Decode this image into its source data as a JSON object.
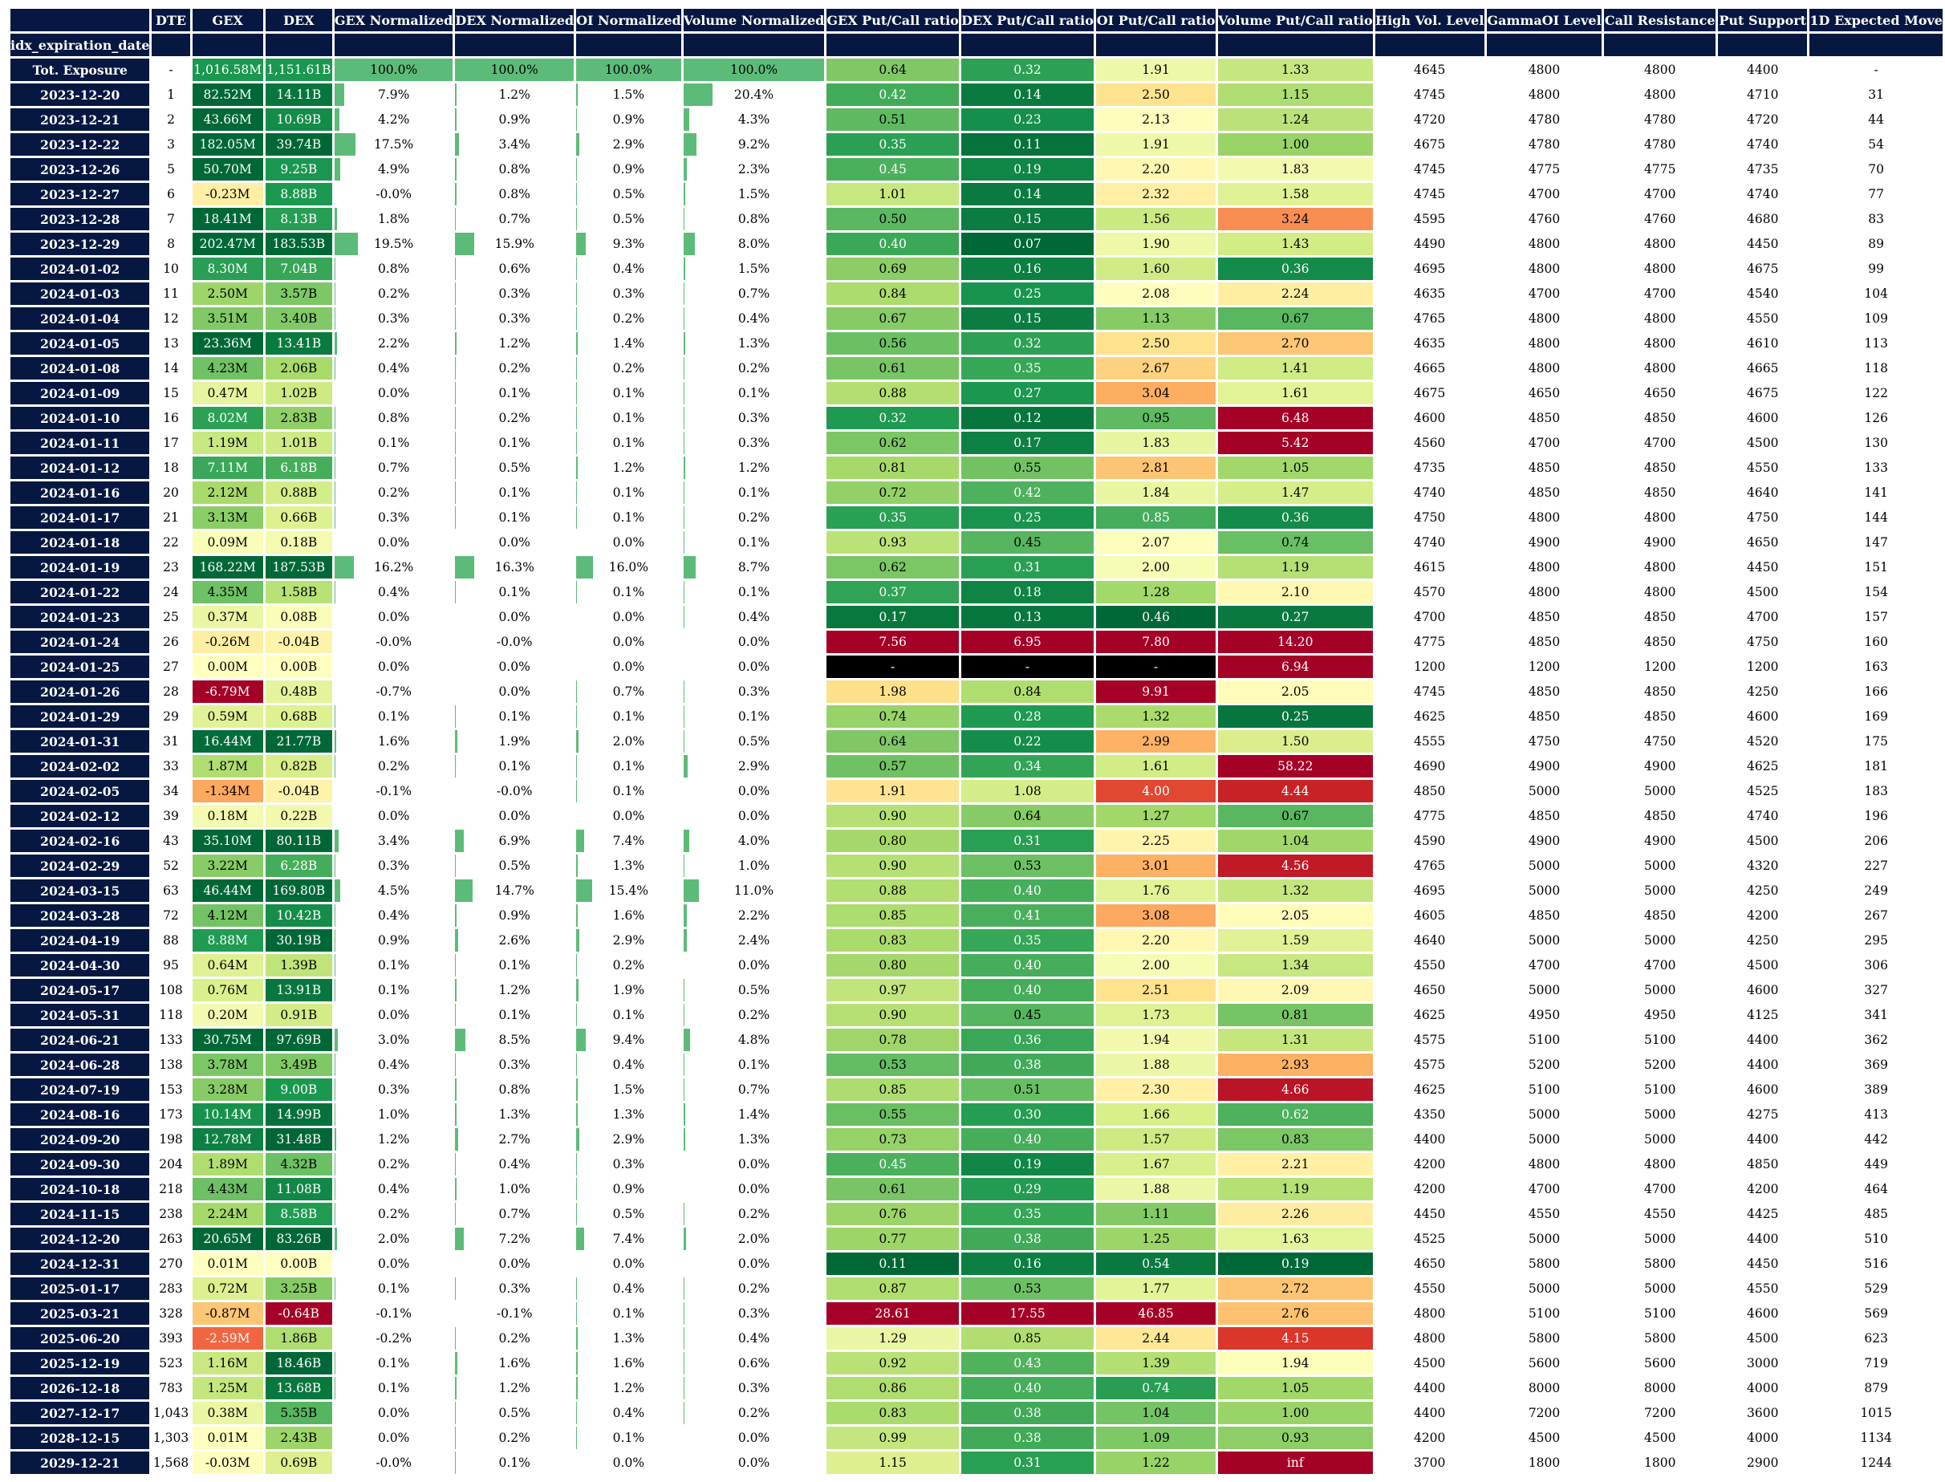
{
  "chart_data": {
    "type": "table",
    "index_name": "idx_expiration_date",
    "columns": [
      "DTE",
      "GEX",
      "DEX",
      "GEX Normalized",
      "DEX Normalized",
      "OI Normalized",
      "Volume Normalized",
      "GEX Put/Call ratio",
      "DEX Put/Call ratio",
      "OI Put/Call ratio",
      "Volume Put/Call ratio",
      "High Vol. Level",
      "GammaOI Level",
      "Call Resistance",
      "Put Support",
      "1D Expected Move"
    ],
    "rows": [
      [
        "Tot. Exposure",
        "-",
        "1,016.58M",
        "1,151.61B",
        "100.0%",
        "100.0%",
        "100.0%",
        "100.0%",
        "0.64",
        "0.32",
        "1.91",
        "1.33",
        "4645",
        "4800",
        "4800",
        "4400",
        "-"
      ],
      [
        "2023-12-20",
        "1",
        "82.52M",
        "14.11B",
        "7.9%",
        "1.2%",
        "1.5%",
        "20.4%",
        "0.42",
        "0.14",
        "2.50",
        "1.15",
        "4745",
        "4800",
        "4800",
        "4710",
        "31"
      ],
      [
        "2023-12-21",
        "2",
        "43.66M",
        "10.69B",
        "4.2%",
        "0.9%",
        "0.9%",
        "4.3%",
        "0.51",
        "0.23",
        "2.13",
        "1.24",
        "4720",
        "4780",
        "4780",
        "4720",
        "44"
      ],
      [
        "2023-12-22",
        "3",
        "182.05M",
        "39.74B",
        "17.5%",
        "3.4%",
        "2.9%",
        "9.2%",
        "0.35",
        "0.11",
        "1.91",
        "1.00",
        "4675",
        "4780",
        "4780",
        "4740",
        "54"
      ],
      [
        "2023-12-26",
        "5",
        "50.70M",
        "9.25B",
        "4.9%",
        "0.8%",
        "0.9%",
        "2.3%",
        "0.45",
        "0.19",
        "2.20",
        "1.83",
        "4745",
        "4775",
        "4775",
        "4735",
        "70"
      ],
      [
        "2023-12-27",
        "6",
        "-0.23M",
        "8.88B",
        "-0.0%",
        "0.8%",
        "0.5%",
        "1.5%",
        "1.01",
        "0.14",
        "2.32",
        "1.58",
        "4745",
        "4700",
        "4700",
        "4740",
        "77"
      ],
      [
        "2023-12-28",
        "7",
        "18.41M",
        "8.13B",
        "1.8%",
        "0.7%",
        "0.5%",
        "0.8%",
        "0.50",
        "0.15",
        "1.56",
        "3.24",
        "4595",
        "4760",
        "4760",
        "4680",
        "83"
      ],
      [
        "2023-12-29",
        "8",
        "202.47M",
        "183.53B",
        "19.5%",
        "15.9%",
        "9.3%",
        "8.0%",
        "0.40",
        "0.07",
        "1.90",
        "1.43",
        "4490",
        "4800",
        "4800",
        "4450",
        "89"
      ],
      [
        "2024-01-02",
        "10",
        "8.30M",
        "7.04B",
        "0.8%",
        "0.6%",
        "0.4%",
        "1.5%",
        "0.69",
        "0.16",
        "1.60",
        "0.36",
        "4695",
        "4800",
        "4800",
        "4675",
        "99"
      ],
      [
        "2024-01-03",
        "11",
        "2.50M",
        "3.57B",
        "0.2%",
        "0.3%",
        "0.3%",
        "0.7%",
        "0.84",
        "0.25",
        "2.08",
        "2.24",
        "4635",
        "4700",
        "4700",
        "4540",
        "104"
      ],
      [
        "2024-01-04",
        "12",
        "3.51M",
        "3.40B",
        "0.3%",
        "0.3%",
        "0.2%",
        "0.4%",
        "0.67",
        "0.15",
        "1.13",
        "0.67",
        "4765",
        "4800",
        "4800",
        "4550",
        "109"
      ],
      [
        "2024-01-05",
        "13",
        "23.36M",
        "13.41B",
        "2.2%",
        "1.2%",
        "1.4%",
        "1.3%",
        "0.56",
        "0.32",
        "2.50",
        "2.70",
        "4635",
        "4800",
        "4800",
        "4610",
        "113"
      ],
      [
        "2024-01-08",
        "14",
        "4.23M",
        "2.06B",
        "0.4%",
        "0.2%",
        "0.2%",
        "0.2%",
        "0.61",
        "0.35",
        "2.67",
        "1.41",
        "4665",
        "4800",
        "4800",
        "4665",
        "118"
      ],
      [
        "2024-01-09",
        "15",
        "0.47M",
        "1.02B",
        "0.0%",
        "0.1%",
        "0.1%",
        "0.1%",
        "0.88",
        "0.27",
        "3.04",
        "1.61",
        "4675",
        "4650",
        "4650",
        "4675",
        "122"
      ],
      [
        "2024-01-10",
        "16",
        "8.02M",
        "2.83B",
        "0.8%",
        "0.2%",
        "0.1%",
        "0.3%",
        "0.32",
        "0.12",
        "0.95",
        "6.48",
        "4600",
        "4850",
        "4850",
        "4600",
        "126"
      ],
      [
        "2024-01-11",
        "17",
        "1.19M",
        "1.01B",
        "0.1%",
        "0.1%",
        "0.1%",
        "0.3%",
        "0.62",
        "0.17",
        "1.83",
        "5.42",
        "4560",
        "4700",
        "4700",
        "4500",
        "130"
      ],
      [
        "2024-01-12",
        "18",
        "7.11M",
        "6.18B",
        "0.7%",
        "0.5%",
        "1.2%",
        "1.2%",
        "0.81",
        "0.55",
        "2.81",
        "1.05",
        "4735",
        "4850",
        "4850",
        "4550",
        "133"
      ],
      [
        "2024-01-16",
        "20",
        "2.12M",
        "0.88B",
        "0.2%",
        "0.1%",
        "0.1%",
        "0.1%",
        "0.72",
        "0.42",
        "1.84",
        "1.47",
        "4740",
        "4850",
        "4850",
        "4640",
        "141"
      ],
      [
        "2024-01-17",
        "21",
        "3.13M",
        "0.66B",
        "0.3%",
        "0.1%",
        "0.1%",
        "0.2%",
        "0.35",
        "0.25",
        "0.85",
        "0.36",
        "4750",
        "4800",
        "4800",
        "4750",
        "144"
      ],
      [
        "2024-01-18",
        "22",
        "0.09M",
        "0.18B",
        "0.0%",
        "0.0%",
        "0.0%",
        "0.1%",
        "0.93",
        "0.45",
        "2.07",
        "0.74",
        "4740",
        "4900",
        "4900",
        "4650",
        "147"
      ],
      [
        "2024-01-19",
        "23",
        "168.22M",
        "187.53B",
        "16.2%",
        "16.3%",
        "16.0%",
        "8.7%",
        "0.62",
        "0.31",
        "2.00",
        "1.19",
        "4615",
        "4800",
        "4800",
        "4450",
        "151"
      ],
      [
        "2024-01-22",
        "24",
        "4.35M",
        "1.58B",
        "0.4%",
        "0.1%",
        "0.1%",
        "0.1%",
        "0.37",
        "0.18",
        "1.28",
        "2.10",
        "4570",
        "4800",
        "4800",
        "4500",
        "154"
      ],
      [
        "2024-01-23",
        "25",
        "0.37M",
        "0.08B",
        "0.0%",
        "0.0%",
        "0.0%",
        "0.4%",
        "0.17",
        "0.13",
        "0.46",
        "0.27",
        "4700",
        "4850",
        "4850",
        "4700",
        "157"
      ],
      [
        "2024-01-24",
        "26",
        "-0.26M",
        "-0.04B",
        "-0.0%",
        "-0.0%",
        "0.0%",
        "0.0%",
        "7.56",
        "6.95",
        "7.80",
        "14.20",
        "4775",
        "4850",
        "4850",
        "4750",
        "160"
      ],
      [
        "2024-01-25",
        "27",
        "0.00M",
        "0.00B",
        "0.0%",
        "0.0%",
        "0.0%",
        "0.0%",
        "-",
        "-",
        "-",
        "6.94",
        "1200",
        "1200",
        "1200",
        "1200",
        "163"
      ],
      [
        "2024-01-26",
        "28",
        "-6.79M",
        "0.48B",
        "-0.7%",
        "0.0%",
        "0.7%",
        "0.3%",
        "1.98",
        "0.84",
        "9.91",
        "2.05",
        "4745",
        "4850",
        "4850",
        "4250",
        "166"
      ],
      [
        "2024-01-29",
        "29",
        "0.59M",
        "0.68B",
        "0.1%",
        "0.1%",
        "0.1%",
        "0.1%",
        "0.74",
        "0.28",
        "1.32",
        "0.25",
        "4625",
        "4850",
        "4850",
        "4600",
        "169"
      ],
      [
        "2024-01-31",
        "31",
        "16.44M",
        "21.77B",
        "1.6%",
        "1.9%",
        "2.0%",
        "0.5%",
        "0.64",
        "0.22",
        "2.99",
        "1.50",
        "4555",
        "4750",
        "4750",
        "4520",
        "175"
      ],
      [
        "2024-02-02",
        "33",
        "1.87M",
        "0.82B",
        "0.2%",
        "0.1%",
        "0.1%",
        "2.9%",
        "0.57",
        "0.34",
        "1.61",
        "58.22",
        "4690",
        "4900",
        "4900",
        "4625",
        "181"
      ],
      [
        "2024-02-05",
        "34",
        "-1.34M",
        "-0.04B",
        "-0.1%",
        "-0.0%",
        "0.1%",
        "0.0%",
        "1.91",
        "1.08",
        "4.00",
        "4.44",
        "4850",
        "5000",
        "5000",
        "4525",
        "183"
      ],
      [
        "2024-02-12",
        "39",
        "0.18M",
        "0.22B",
        "0.0%",
        "0.0%",
        "0.0%",
        "0.0%",
        "0.90",
        "0.64",
        "1.27",
        "0.67",
        "4775",
        "4850",
        "4850",
        "4740",
        "196"
      ],
      [
        "2024-02-16",
        "43",
        "35.10M",
        "80.11B",
        "3.4%",
        "6.9%",
        "7.4%",
        "4.0%",
        "0.80",
        "0.31",
        "2.25",
        "1.04",
        "4590",
        "4900",
        "4900",
        "4500",
        "206"
      ],
      [
        "2024-02-29",
        "52",
        "3.22M",
        "6.28B",
        "0.3%",
        "0.5%",
        "1.3%",
        "1.0%",
        "0.90",
        "0.53",
        "3.01",
        "4.56",
        "4765",
        "5000",
        "5000",
        "4320",
        "227"
      ],
      [
        "2024-03-15",
        "63",
        "46.44M",
        "169.80B",
        "4.5%",
        "14.7%",
        "15.4%",
        "11.0%",
        "0.88",
        "0.40",
        "1.76",
        "1.32",
        "4695",
        "5000",
        "5000",
        "4250",
        "249"
      ],
      [
        "2024-03-28",
        "72",
        "4.12M",
        "10.42B",
        "0.4%",
        "0.9%",
        "1.6%",
        "2.2%",
        "0.85",
        "0.41",
        "3.08",
        "2.05",
        "4605",
        "4850",
        "4850",
        "4200",
        "267"
      ],
      [
        "2024-04-19",
        "88",
        "8.88M",
        "30.19B",
        "0.9%",
        "2.6%",
        "2.9%",
        "2.4%",
        "0.83",
        "0.35",
        "2.20",
        "1.59",
        "4640",
        "5000",
        "5000",
        "4250",
        "295"
      ],
      [
        "2024-04-30",
        "95",
        "0.64M",
        "1.39B",
        "0.1%",
        "0.1%",
        "0.2%",
        "0.0%",
        "0.80",
        "0.40",
        "2.00",
        "1.34",
        "4550",
        "4700",
        "4700",
        "4500",
        "306"
      ],
      [
        "2024-05-17",
        "108",
        "0.76M",
        "13.91B",
        "0.1%",
        "1.2%",
        "1.9%",
        "0.5%",
        "0.97",
        "0.40",
        "2.51",
        "2.09",
        "4650",
        "5000",
        "5000",
        "4600",
        "327"
      ],
      [
        "2024-05-31",
        "118",
        "0.20M",
        "0.91B",
        "0.0%",
        "0.1%",
        "0.1%",
        "0.2%",
        "0.90",
        "0.45",
        "1.73",
        "0.81",
        "4625",
        "4950",
        "4950",
        "4125",
        "341"
      ],
      [
        "2024-06-21",
        "133",
        "30.75M",
        "97.69B",
        "3.0%",
        "8.5%",
        "9.4%",
        "4.8%",
        "0.78",
        "0.36",
        "1.94",
        "1.31",
        "4575",
        "5100",
        "5100",
        "4400",
        "362"
      ],
      [
        "2024-06-28",
        "138",
        "3.78M",
        "3.49B",
        "0.4%",
        "0.3%",
        "0.4%",
        "0.1%",
        "0.53",
        "0.38",
        "1.88",
        "2.93",
        "4575",
        "5200",
        "5200",
        "4400",
        "369"
      ],
      [
        "2024-07-19",
        "153",
        "3.28M",
        "9.00B",
        "0.3%",
        "0.8%",
        "1.5%",
        "0.7%",
        "0.85",
        "0.51",
        "2.30",
        "4.66",
        "4625",
        "5100",
        "5100",
        "4600",
        "389"
      ],
      [
        "2024-08-16",
        "173",
        "10.14M",
        "14.99B",
        "1.0%",
        "1.3%",
        "1.3%",
        "1.4%",
        "0.55",
        "0.30",
        "1.66",
        "0.62",
        "4350",
        "5000",
        "5000",
        "4275",
        "413"
      ],
      [
        "2024-09-20",
        "198",
        "12.78M",
        "31.48B",
        "1.2%",
        "2.7%",
        "2.9%",
        "1.3%",
        "0.73",
        "0.40",
        "1.57",
        "0.83",
        "4400",
        "5000",
        "5000",
        "4400",
        "442"
      ],
      [
        "2024-09-30",
        "204",
        "1.89M",
        "4.32B",
        "0.2%",
        "0.4%",
        "0.3%",
        "0.0%",
        "0.45",
        "0.19",
        "1.67",
        "2.21",
        "4200",
        "4800",
        "4800",
        "4850",
        "449"
      ],
      [
        "2024-10-18",
        "218",
        "4.43M",
        "11.08B",
        "0.4%",
        "1.0%",
        "0.9%",
        "0.0%",
        "0.61",
        "0.29",
        "1.88",
        "1.19",
        "4200",
        "4700",
        "4700",
        "4200",
        "464"
      ],
      [
        "2024-11-15",
        "238",
        "2.24M",
        "8.58B",
        "0.2%",
        "0.7%",
        "0.5%",
        "0.2%",
        "0.76",
        "0.35",
        "1.11",
        "2.26",
        "4450",
        "4550",
        "4550",
        "4425",
        "485"
      ],
      [
        "2024-12-20",
        "263",
        "20.65M",
        "83.26B",
        "2.0%",
        "7.2%",
        "7.4%",
        "2.0%",
        "0.77",
        "0.38",
        "1.25",
        "1.63",
        "4525",
        "5000",
        "5000",
        "4400",
        "510"
      ],
      [
        "2024-12-31",
        "270",
        "0.01M",
        "0.00B",
        "0.0%",
        "0.0%",
        "0.0%",
        "0.0%",
        "0.11",
        "0.16",
        "0.54",
        "0.19",
        "4650",
        "5800",
        "5800",
        "4450",
        "516"
      ],
      [
        "2025-01-17",
        "283",
        "0.72M",
        "3.25B",
        "0.1%",
        "0.3%",
        "0.4%",
        "0.2%",
        "0.87",
        "0.53",
        "1.77",
        "2.72",
        "4550",
        "5000",
        "5000",
        "4550",
        "529"
      ],
      [
        "2025-03-21",
        "328",
        "-0.87M",
        "-0.64B",
        "-0.1%",
        "-0.1%",
        "0.1%",
        "0.3%",
        "28.61",
        "17.55",
        "46.85",
        "2.76",
        "4800",
        "5100",
        "5100",
        "4600",
        "569"
      ],
      [
        "2025-06-20",
        "393",
        "-2.59M",
        "1.86B",
        "-0.2%",
        "0.2%",
        "1.3%",
        "0.4%",
        "1.29",
        "0.85",
        "2.44",
        "4.15",
        "4800",
        "5800",
        "5800",
        "4500",
        "623"
      ],
      [
        "2025-12-19",
        "523",
        "1.16M",
        "18.46B",
        "0.1%",
        "1.6%",
        "1.6%",
        "0.6%",
        "0.92",
        "0.43",
        "1.39",
        "1.94",
        "4500",
        "5600",
        "5600",
        "3000",
        "719"
      ],
      [
        "2026-12-18",
        "783",
        "1.25M",
        "13.68B",
        "0.1%",
        "1.2%",
        "1.2%",
        "0.3%",
        "0.86",
        "0.40",
        "0.74",
        "1.05",
        "4400",
        "8000",
        "8000",
        "4000",
        "879"
      ],
      [
        "2027-12-17",
        "1,043",
        "0.38M",
        "5.35B",
        "0.0%",
        "0.5%",
        "0.4%",
        "0.2%",
        "0.83",
        "0.38",
        "1.04",
        "1.00",
        "4400",
        "7200",
        "7200",
        "3600",
        "1015"
      ],
      [
        "2028-12-15",
        "1,303",
        "0.01M",
        "2.43B",
        "0.0%",
        "0.2%",
        "0.1%",
        "0.0%",
        "0.99",
        "0.38",
        "1.09",
        "0.93",
        "4200",
        "4500",
        "4500",
        "4000",
        "1134"
      ],
      [
        "2029-12-21",
        "1,568",
        "-0.03M",
        "0.69B",
        "-0.0%",
        "0.1%",
        "0.0%",
        "0.0%",
        "1.15",
        "0.31",
        "1.22",
        "inf",
        "3700",
        "1800",
        "1800",
        "2900",
        "1244"
      ]
    ]
  }
}
